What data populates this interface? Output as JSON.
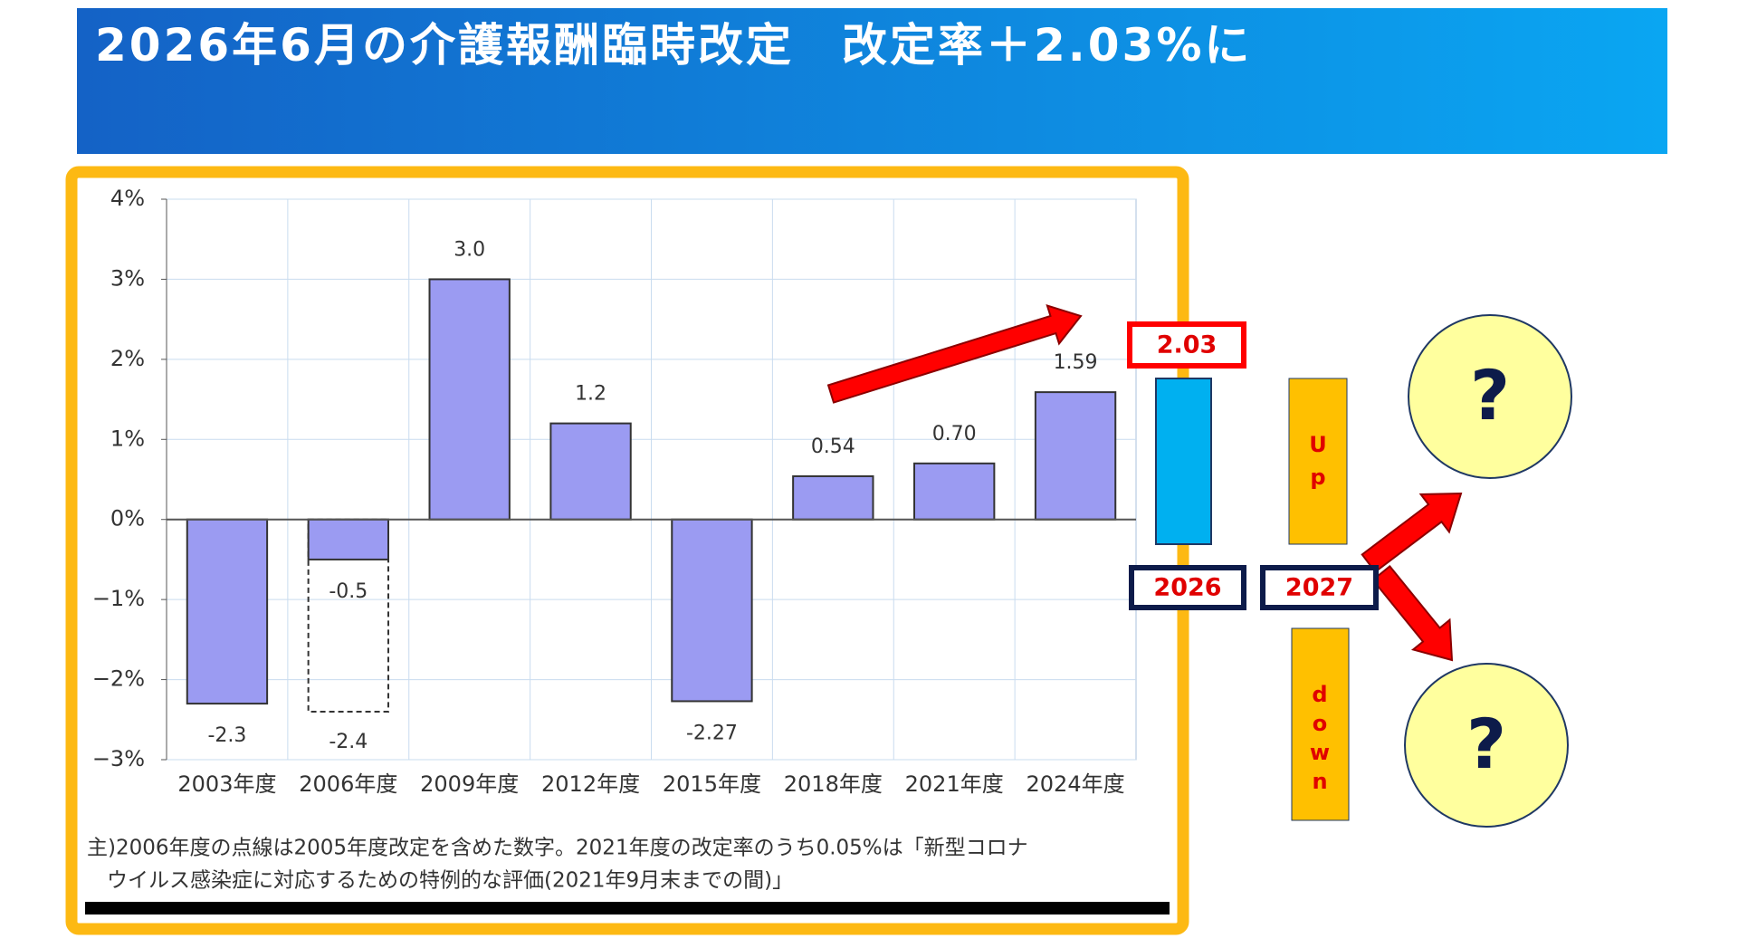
{
  "header": {
    "title": "2026年6月の介護報酬臨時改定　改定率＋2.03%に"
  },
  "chart_data": {
    "type": "bar",
    "categories": [
      "2003年度",
      "2006年度",
      "2009年度",
      "2012年度",
      "2015年度",
      "2018年度",
      "2021年度",
      "2024年度"
    ],
    "values": [
      -2.3,
      -0.5,
      3.0,
      1.2,
      -2.27,
      0.54,
      0.7,
      1.59
    ],
    "value_labels": [
      "-2.3",
      "-0.5",
      "3.0",
      "1.2",
      "-2.27",
      "0.54",
      "0.70",
      "1.59"
    ],
    "dashed_values": [
      null,
      -2.4,
      null,
      null,
      null,
      null,
      null,
      null
    ],
    "dashed_value_labels": [
      null,
      "-2.4",
      null,
      null,
      null,
      null,
      null,
      null
    ],
    "color": "#9b9bf2",
    "ylim": [
      -3,
      4
    ],
    "yticks": [
      {
        "value": 4,
        "label": "4%"
      },
      {
        "value": 3,
        "label": "3%"
      },
      {
        "value": 2,
        "label": "2%"
      },
      {
        "value": 1,
        "label": "1%"
      },
      {
        "value": 0,
        "label": "0%"
      },
      {
        "value": -1,
        "label": "−1%"
      },
      {
        "value": -2,
        "label": "−2%"
      },
      {
        "value": -3,
        "label": "−3%"
      }
    ],
    "grid": true,
    "notes": [
      "主)2006年度の点線は2005年度改定を含めた数字。2021年度の改定率のうち0.05%は「新型コロナ",
      "ウイルス感染症に対応するための特例的な評価(2021年9月末までの間)」"
    ]
  },
  "diagram": {
    "rate": "2.03",
    "year_now": "2026",
    "year_next": "2027",
    "up": "Up",
    "down": "down",
    "question_up": "?",
    "question_down": "?"
  }
}
